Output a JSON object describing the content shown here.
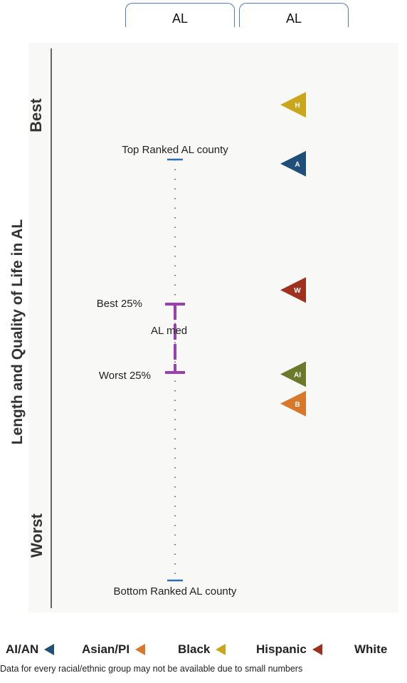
{
  "header": {
    "col1_label": "AL",
    "col2_label": "AL"
  },
  "axis": {
    "title": "Length and Quality of Life in AL",
    "top_label": "Best",
    "bottom_label": "Worst"
  },
  "colors": {
    "AI/AN": "#6b7a2a",
    "Asian/PI": "#1f4e79",
    "Black": "#d9772b",
    "Hispanic": "#c9a61c",
    "White": "#a0301e",
    "quartile": "#9b3fb0",
    "county": "#2e6fb5"
  },
  "chart_data": {
    "type": "scatter",
    "scale": "rank position (top = best, bottom = worst)",
    "reference": {
      "top_county_label": "Top Ranked AL county",
      "bottom_county_label": "Bottom Ranked AL county",
      "best25_label": "Best 25%",
      "worst25_label": "Worst 25%",
      "median_label": "AL med",
      "top_county": 1.0,
      "best25": 0.63,
      "median": 0.5,
      "worst25": 0.48,
      "bottom_county": 0.0
    },
    "groups": [
      {
        "name": "Hispanic",
        "code": "H",
        "value": 1.13
      },
      {
        "name": "Asian/PI",
        "code": "A",
        "value": 0.99
      },
      {
        "name": "White",
        "code": "W",
        "value": 0.69
      },
      {
        "name": "AI/AN",
        "code": "AI",
        "value": 0.49
      },
      {
        "name": "Black",
        "code": "B",
        "value": 0.42
      }
    ]
  },
  "legend": {
    "items": [
      {
        "label": "AI/AN",
        "key": "AI/AN"
      },
      {
        "label": "Asian/PI",
        "key": "Asian/PI"
      },
      {
        "label": "Black",
        "key": "Black"
      },
      {
        "label": "Hispanic",
        "key": "Hispanic"
      },
      {
        "label": "White",
        "key": "White"
      }
    ]
  },
  "footnote": "Data for every racial/ethnic group may not be available due to small numbers"
}
